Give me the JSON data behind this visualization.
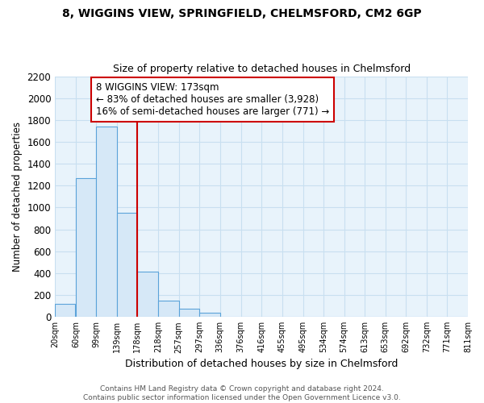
{
  "title_line1": "8, WIGGINS VIEW, SPRINGFIELD, CHELMSFORD, CM2 6GP",
  "title_line2": "Size of property relative to detached houses in Chelmsford",
  "xlabel": "Distribution of detached houses by size in Chelmsford",
  "ylabel": "Number of detached properties",
  "footer_line1": "Contains HM Land Registry data © Crown copyright and database right 2024.",
  "footer_line2": "Contains public sector information licensed under the Open Government Licence v3.0.",
  "annotation_line1": "8 WIGGINS VIEW: 173sqm",
  "annotation_line2": "← 83% of detached houses are smaller (3,928)",
  "annotation_line3": "16% of semi-detached houses are larger (771) →",
  "bar_left_edges": [
    20,
    60,
    99,
    139,
    178,
    218,
    257,
    297,
    336,
    376,
    416,
    455,
    495,
    534,
    574,
    613,
    653,
    692,
    732,
    771
  ],
  "bar_widths": [
    39,
    39,
    39,
    39,
    39,
    39,
    39,
    39,
    39,
    39,
    39,
    39,
    39,
    39,
    39,
    39,
    39,
    39,
    39,
    39
  ],
  "bar_heights": [
    120,
    1265,
    1740,
    950,
    415,
    150,
    75,
    35,
    0,
    0,
    0,
    0,
    0,
    0,
    0,
    0,
    0,
    0,
    0,
    0
  ],
  "x_tick_labels": [
    "20sqm",
    "60sqm",
    "99sqm",
    "139sqm",
    "178sqm",
    "218sqm",
    "257sqm",
    "297sqm",
    "336sqm",
    "376sqm",
    "416sqm",
    "455sqm",
    "495sqm",
    "534sqm",
    "574sqm",
    "613sqm",
    "653sqm",
    "692sqm",
    "732sqm",
    "771sqm",
    "811sqm"
  ],
  "x_tick_positions": [
    20,
    60,
    99,
    139,
    178,
    218,
    257,
    297,
    336,
    376,
    416,
    455,
    495,
    534,
    574,
    613,
    653,
    692,
    732,
    771,
    811
  ],
  "ylim": [
    0,
    2200
  ],
  "xlim": [
    20,
    811
  ],
  "bar_facecolor": "#d6e8f7",
  "bar_edgecolor": "#5ba3d9",
  "grid_color": "#c8dff0",
  "background_color": "#e8f3fb",
  "marker_x": 178,
  "marker_color": "#cc0000",
  "box_color": "#cc0000",
  "title_fontsize": 10,
  "subtitle_fontsize": 9,
  "tick_label_fontsize": 7,
  "ylabel_fontsize": 8.5,
  "xlabel_fontsize": 9,
  "annotation_fontsize": 8.5,
  "footer_fontsize": 6.5
}
